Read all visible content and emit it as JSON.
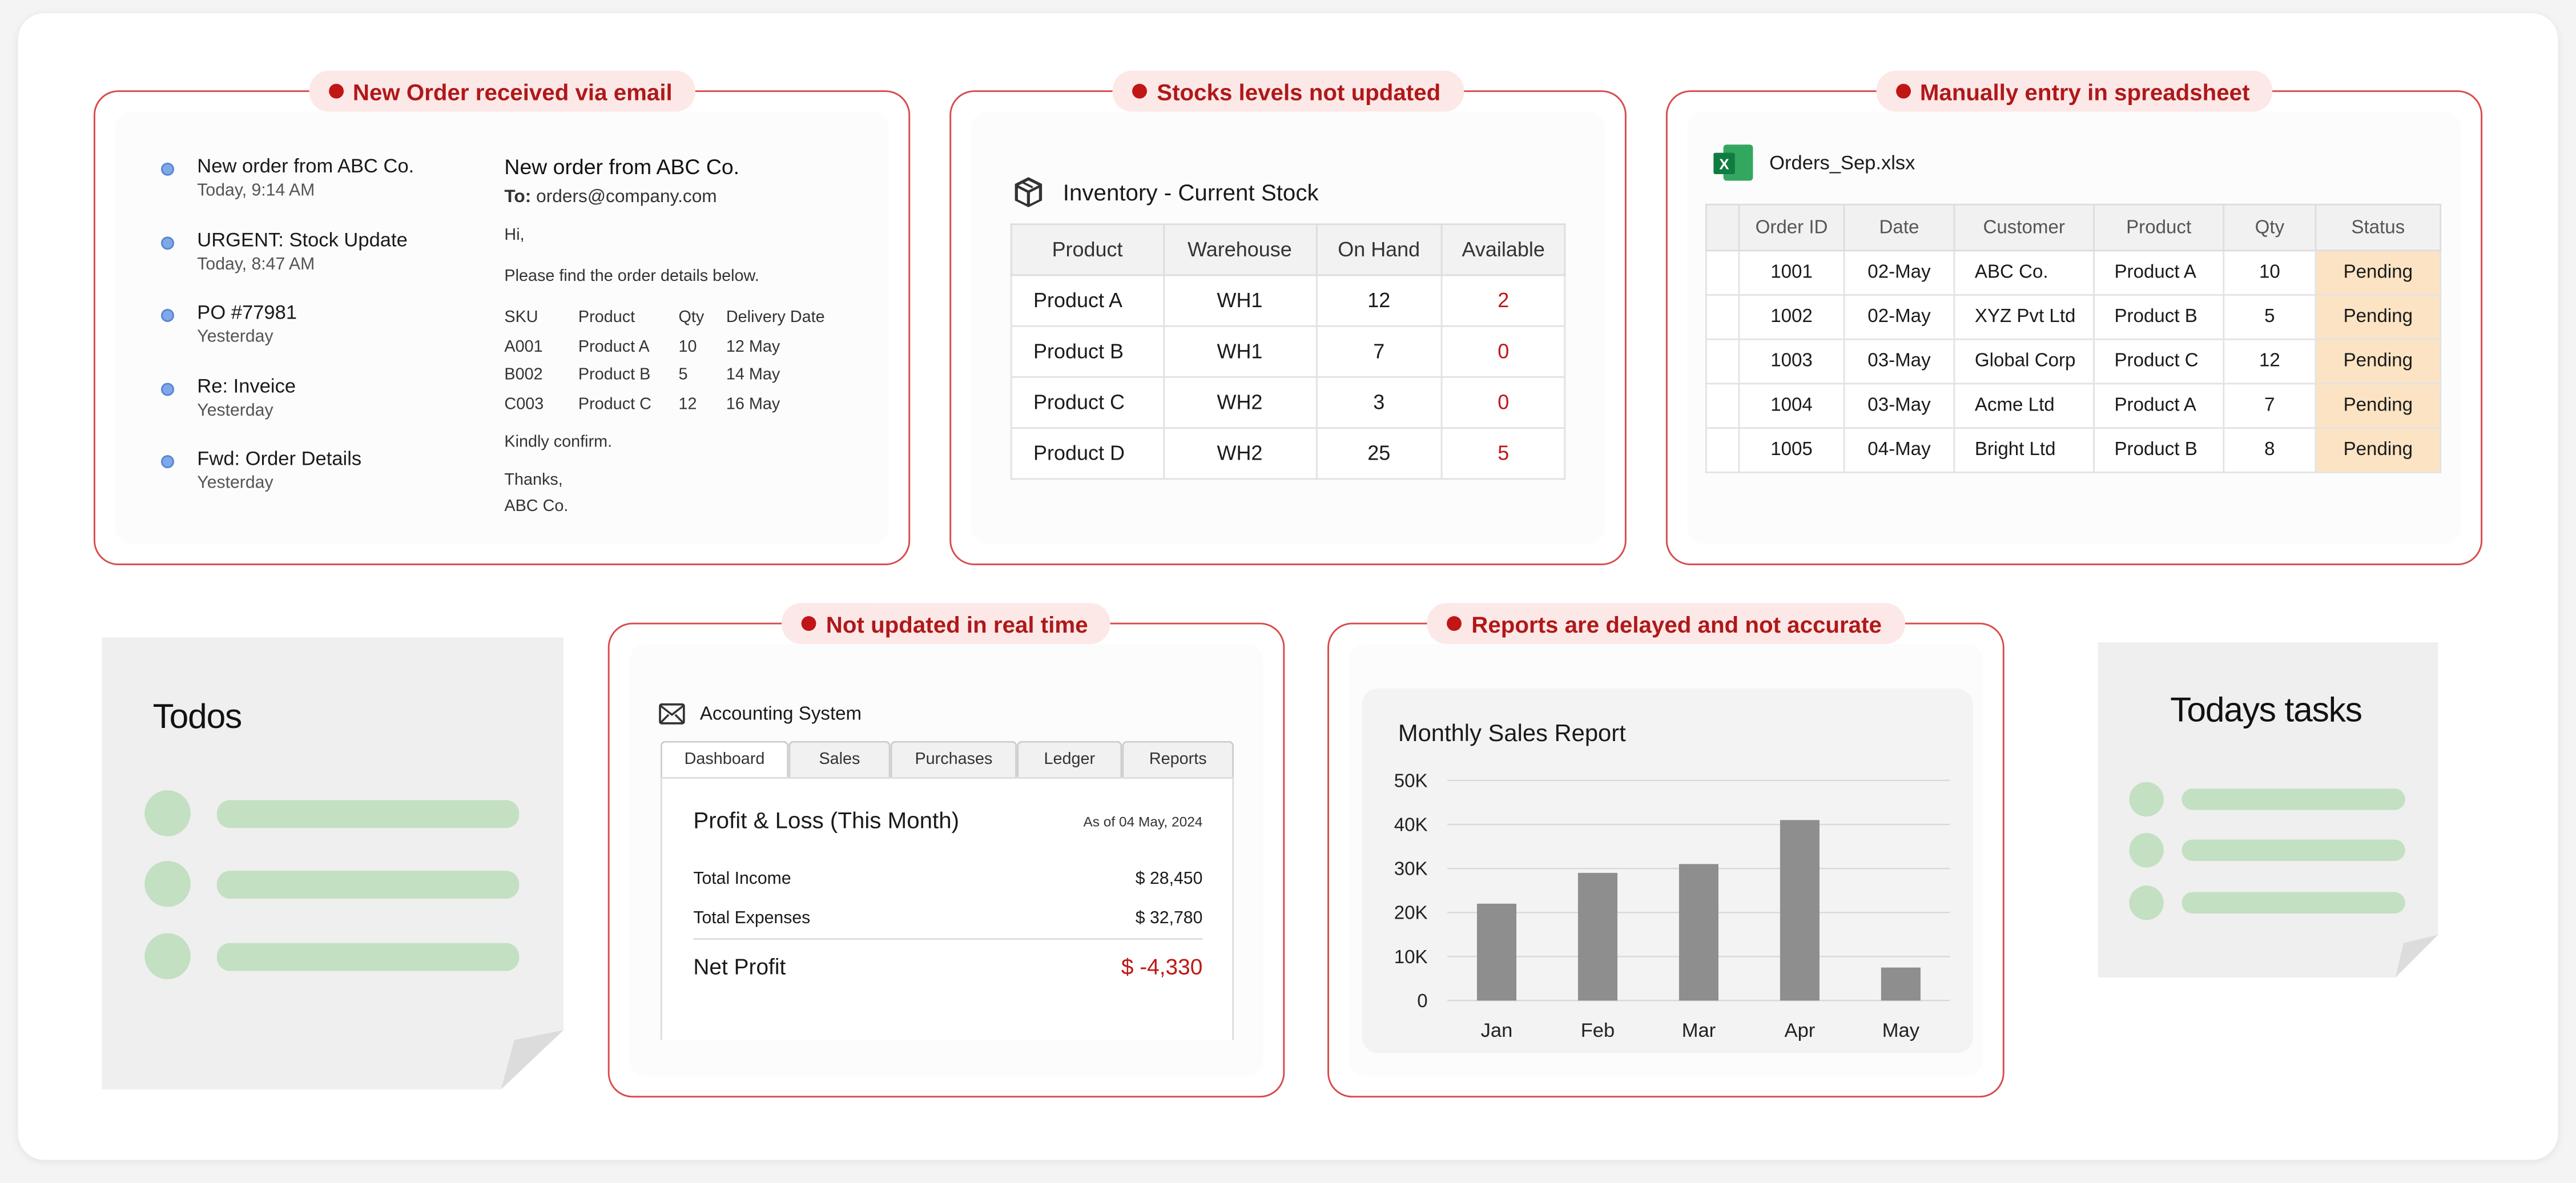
{
  "email_panel": {
    "pill": "New Order received via email",
    "list": [
      {
        "title": "New order from ABC Co.",
        "date": "Today, 9:14 AM"
      },
      {
        "title": "URGENT: Stock Update",
        "date": "Today, 8:47 AM"
      },
      {
        "title": "PO #77981",
        "date": "Yesterday"
      },
      {
        "title": "Re: Inveice",
        "date": "Yesterday"
      },
      {
        "title": "Fwd: Order Details",
        "date": "Yesterday"
      }
    ],
    "body": {
      "subject": "New order from ABC Co.",
      "to_label": "To:",
      "to": "orders@company.com",
      "greeting": "Hi,",
      "intro": "Please find the order details below.",
      "headers": [
        "SKU",
        "Product",
        "Qty",
        "Delivery Date"
      ],
      "rows": [
        [
          "A001",
          "Product A",
          "10",
          "12 May"
        ],
        [
          "B002",
          "Product B",
          "5",
          "14 May"
        ],
        [
          "C003",
          "Product C",
          "12",
          "16 May"
        ]
      ],
      "closing": "Kindly confirm.",
      "signoff": "Thanks,",
      "sender": "ABC Co."
    }
  },
  "inventory_panel": {
    "pill": "Stocks levels not updated",
    "title": "Inventory - Current Stock",
    "headers": [
      "Product",
      "Warehouse",
      "On Hand",
      "Available"
    ],
    "rows": [
      [
        "Product A",
        "WH1",
        "12",
        "2"
      ],
      [
        "Product B",
        "WH1",
        "7",
        "0"
      ],
      [
        "Product C",
        "WH2",
        "3",
        "0"
      ],
      [
        "Product D",
        "WH2",
        "25",
        "5"
      ]
    ]
  },
  "sheet_panel": {
    "pill": "Manually entry in spreadsheet",
    "filename": "Orders_Sep.xlsx",
    "icon_letter": "X",
    "headers": [
      "Order ID",
      "Date",
      "Customer",
      "Product",
      "Qty",
      "Status"
    ],
    "rows": [
      [
        "1001",
        "02-May",
        "ABC Co.",
        "Product A",
        "10",
        "Pending"
      ],
      [
        "1002",
        "02-May",
        "XYZ Pvt Ltd",
        "Product B",
        "5",
        "Pending"
      ],
      [
        "1003",
        "03-May",
        "Global Corp",
        "Product C",
        "12",
        "Pending"
      ],
      [
        "1004",
        "03-May",
        "Acme Ltd",
        "Product A",
        "7",
        "Pending"
      ],
      [
        "1005",
        "04-May",
        "Bright Ltd",
        "Product B",
        "8",
        "Pending"
      ]
    ],
    "status_color": "#fbe3c3"
  },
  "accounting_panel": {
    "pill": "Not updated in real time",
    "app_name": "Accounting System",
    "tabs": [
      "Dashboard",
      "Sales",
      "Purchases",
      "Ledger",
      "Reports"
    ],
    "active_tab": "Dashboard",
    "title": "Profit & Loss (This Month)",
    "as_of": "As of 04 May, 2024",
    "income_label": "Total Income",
    "income": "$ 28,450",
    "expenses_label": "Total Expenses",
    "expenses": "$ 32,780",
    "net_label": "Net Profit",
    "net": "$ -4,330"
  },
  "report_panel": {
    "pill": "Reports are delayed and not accurate",
    "chart_data": {
      "type": "bar",
      "title": "Monthly Sales Report",
      "categories": [
        "Jan",
        "Feb",
        "Mar",
        "Apr",
        "May"
      ],
      "values": [
        22000,
        29000,
        31000,
        41000,
        7500
      ],
      "ylim": [
        0,
        50000
      ],
      "yticks": [
        "0",
        "10K",
        "20K",
        "30K",
        "40K",
        "50K"
      ],
      "grid": true,
      "bar_color": "#8e8e8e"
    }
  },
  "todos_note": {
    "title": "Todos"
  },
  "tasks_note": {
    "title": "Todays tasks"
  },
  "colors": {
    "accent": "#c01616",
    "frame": "#d84a4a",
    "note_green": "#c3e0c2"
  }
}
